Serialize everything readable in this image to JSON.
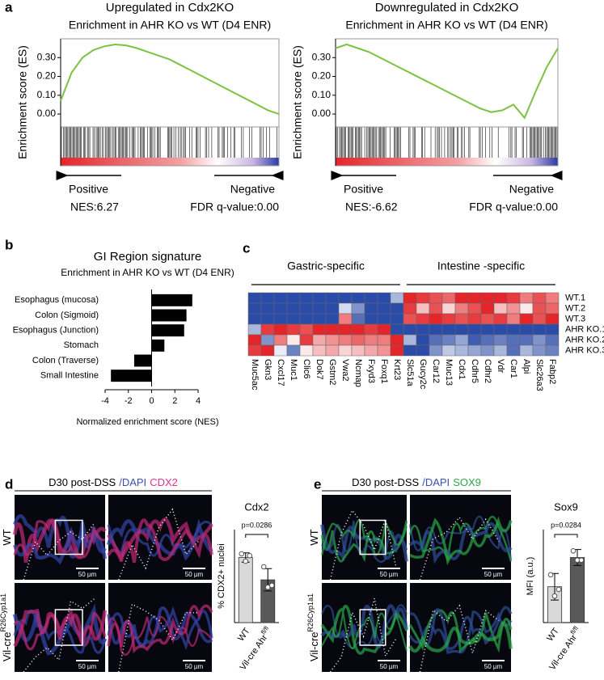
{
  "chart_data": [
    {
      "type": "line",
      "title": "Upregulated in Cdx2KO",
      "subtitle": "Enrichment in AHR KO vs WT (D4 ENR)",
      "y_label": "Enrichment score (ES)",
      "x": [
        0,
        5,
        10,
        15,
        20,
        25,
        30,
        35,
        40,
        45,
        50,
        55,
        60,
        65,
        70,
        75,
        80,
        85,
        90,
        95,
        100
      ],
      "series": [
        {
          "color": "#7dc242",
          "values": [
            0.07,
            0.22,
            0.3,
            0.34,
            0.36,
            0.37,
            0.365,
            0.35,
            0.33,
            0.31,
            0.29,
            0.26,
            0.23,
            0.2,
            0.17,
            0.14,
            0.11,
            0.08,
            0.05,
            0.02,
            0.0
          ]
        }
      ],
      "xlim": [
        0,
        100
      ],
      "ylim": [
        -0.06,
        0.4
      ],
      "yticks": [
        {
          "value": 0,
          "label": "0.00"
        },
        {
          "value": 0.1,
          "label": "0.10"
        },
        {
          "value": 0.2,
          "label": "0.20"
        },
        {
          "value": 0.3,
          "label": "0.30"
        }
      ],
      "annotations": {
        "left": "Positive",
        "right": "Negative",
        "nes": "NES:6.27",
        "fdr": "FDR q-value:0.00"
      }
    },
    {
      "type": "line",
      "title": "Downregulated in Cdx2KO",
      "subtitle": "Enrichment in AHR KO vs WT (D4 ENR)",
      "y_label": "Enrichment score (ES)",
      "x": [
        0,
        5,
        10,
        15,
        20,
        25,
        30,
        35,
        40,
        45,
        50,
        55,
        60,
        65,
        70,
        75,
        80,
        85,
        90,
        95,
        100
      ],
      "series": [
        {
          "color": "#7dc242",
          "values": [
            0.35,
            0.37,
            0.35,
            0.33,
            0.3,
            0.27,
            0.24,
            0.21,
            0.18,
            0.15,
            0.12,
            0.09,
            0.06,
            0.03,
            0.01,
            0.02,
            0.05,
            -0.02,
            0.12,
            0.25,
            0.35
          ]
        }
      ],
      "xlim": [
        0,
        100
      ],
      "ylim": [
        -0.06,
        0.4
      ],
      "yticks": [
        {
          "value": 0,
          "label": "0.00"
        },
        {
          "value": 0.1,
          "label": "0.10"
        },
        {
          "value": 0.2,
          "label": "0.20"
        },
        {
          "value": 0.3,
          "label": "0.30"
        }
      ],
      "annotations": {
        "left": "Positive",
        "right": "Negative",
        "nes": "NES:-6.62",
        "fdr": "FDR q-value:0.00"
      }
    },
    {
      "type": "bar",
      "orientation": "horizontal",
      "title": "GI Region signature",
      "subtitle": "Enrichment in AHR KO vs WT (D4 ENR)",
      "x_label": "Normalized enrichment score (NES)",
      "categories": [
        "Esophagus (mucosa)",
        "Colon (Sigmoid)",
        "Esophagus (Junction)",
        "Stomach",
        "Colon (Traverse)",
        "Small Intestine"
      ],
      "values": [
        3.5,
        3.0,
        2.8,
        1.1,
        -1.5,
        -3.5
      ],
      "color": "#000000",
      "xlim": [
        -4,
        4
      ],
      "xticks": [
        -4,
        -2,
        0,
        2,
        4
      ]
    },
    {
      "type": "heatmap",
      "group_labels": [
        "Gastric-specific",
        "Intestine -specific"
      ],
      "categories": [
        "Muc5ac",
        "Gkn3",
        "Cxcl17",
        "Muc1",
        "Clic6",
        "Dok7",
        "Gstm2",
        "Vwa2",
        "Ncmap",
        "Fxyd3",
        "Foxq1",
        "Krt23",
        "Slc51a",
        "Gucy2c",
        "Car12",
        "Muc13",
        "Cdx1",
        "Cdhr5",
        "Cdhr2",
        "Vdr",
        "Car1",
        "Alpi",
        "Slc26a3",
        "Fabp2"
      ],
      "rows": [
        "WT.1",
        "WT.2",
        "WT.3",
        "AHR KO.1",
        "AHR KO.2",
        "AHR KO.3"
      ],
      "values": [
        [
          -1,
          -1,
          -1,
          -1,
          -1,
          -1,
          -1,
          -1,
          -1,
          -1,
          -1,
          -0.4,
          1,
          0.9,
          0.8,
          0.7,
          1,
          1,
          1,
          1,
          0.9,
          0.6,
          0.8,
          0.6
        ],
        [
          -1,
          -1,
          -1,
          -1,
          -1,
          -1,
          -1,
          -0.2,
          -0.6,
          -1,
          -1,
          -1,
          0.9,
          0.3,
          0.8,
          0.2,
          0.6,
          0.8,
          1,
          0.3,
          0.5,
          0.1,
          0.8,
          0.7
        ],
        [
          -1,
          -1,
          -1,
          -1,
          -1,
          -1,
          -1,
          0.6,
          -0.8,
          -1,
          -1,
          -1,
          0.8,
          0.9,
          1,
          0.9,
          0.8,
          0.9,
          0.8,
          0.9,
          0.6,
          1,
          0.8,
          1
        ],
        [
          -0.4,
          0.9,
          1,
          0.9,
          0.8,
          1,
          1,
          1,
          1,
          0.9,
          1,
          -1,
          -1,
          -1,
          -1,
          -1,
          -1,
          -1,
          -1,
          -1,
          -1,
          -1,
          -1,
          -1
        ],
        [
          1,
          -0.6,
          0.6,
          0.1,
          0.9,
          0.4,
          0.5,
          0.6,
          0.7,
          0.6,
          0.6,
          1,
          -0.4,
          -1,
          -0.8,
          -0.7,
          -0.5,
          -0.9,
          -0.8,
          -0.7,
          -0.8,
          -0.8,
          -0.6,
          -0.8
        ],
        [
          0.9,
          1,
          -0.1,
          -0.7,
          0.1,
          0.3,
          0.4,
          0.2,
          0.3,
          0.4,
          0.5,
          1,
          -1,
          -1,
          -0.6,
          -0.3,
          -0.4,
          -0.5,
          -0.6,
          -0.4,
          -0.8,
          -0.4,
          -0.6,
          -0.7
        ]
      ],
      "zlim": [
        -1,
        1
      ],
      "colors": {
        "low": "#2b4ba8",
        "mid": "#ffffff",
        "high": "#e4252a"
      }
    },
    {
      "type": "bar",
      "title": "Cdx2",
      "y_label": "% CDX2+ nuclei",
      "categories": [
        "WT",
        "Vil-cre Ahr"
      ],
      "superscripts": [
        null,
        "fl/fl"
      ],
      "values": [
        70,
        46
      ],
      "errors": [
        5,
        12
      ],
      "points": [
        [
          74,
          66,
          72
        ],
        [
          60,
          38,
          40
        ]
      ],
      "colors": [
        "#d9d9d9",
        "#595959"
      ],
      "ylim": [
        0,
        100
      ],
      "annotation": "p=0.0286"
    },
    {
      "type": "bar",
      "title": "Sox9",
      "y_label": "MFI (a.u.)",
      "categories": [
        "WT",
        "Vil-cre Ahr"
      ],
      "superscripts": [
        null,
        "fl/fl"
      ],
      "values": [
        27,
        49
      ],
      "errors": [
        10,
        6
      ],
      "points": [
        [
          36,
          20,
          25
        ],
        [
          54,
          47,
          47
        ]
      ],
      "colors": [
        "#d9d9d9",
        "#595959"
      ],
      "ylim": [
        0,
        70
      ],
      "annotation": "p=0.0284"
    }
  ],
  "figure": {
    "panel_labels": [
      "a",
      "b",
      "c",
      "d",
      "e"
    ],
    "d": {
      "header": [
        "D30 post-DSS",
        "/DAPI",
        "CDX2"
      ],
      "header_colors": [
        "#000000",
        "#3b4fb0",
        "#e0338f"
      ],
      "rows": [
        "WT",
        "Vil-cre"
      ],
      "row_superscript": "R26Cyp1a1"
    },
    "e": {
      "header": [
        "D30 post-DSS",
        "/DAPI",
        "SOX9"
      ],
      "header_colors": [
        "#000000",
        "#3b4fb0",
        "#2aa84a"
      ],
      "rows": [
        "WT",
        "Vil-cre"
      ],
      "row_superscript": "R26Cyp1a1"
    },
    "scale_bar": "50 µm"
  }
}
